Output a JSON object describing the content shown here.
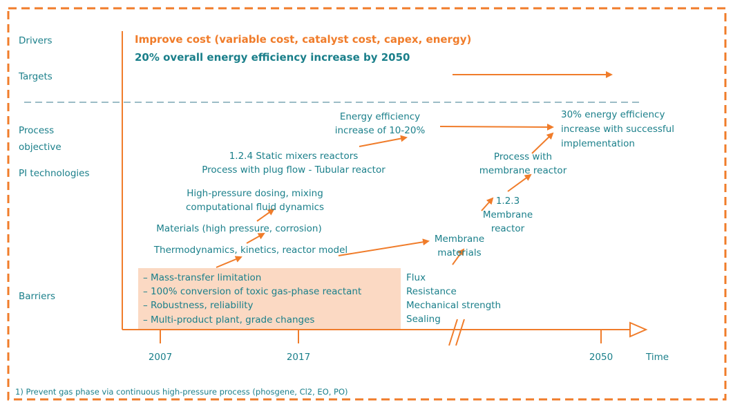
{
  "rows": {
    "drivers": "Drivers",
    "targets": "Targets",
    "process_objective": [
      "Process",
      "objective"
    ],
    "pi_technologies": "PI technologies",
    "barriers": "Barriers"
  },
  "drivers_text": "Improve cost (variable cost, catalyst cost, capex, energy)",
  "targets_text": "20% overall energy efficiency increase by 2050",
  "objectives": {
    "energy_10_20": [
      "Energy efficiency",
      "increase of 10-20%"
    ],
    "energy_30": [
      "30% energy efficiency",
      "increase with successful",
      "implementation"
    ]
  },
  "technologies": {
    "static_mixers": [
      "1.2.4 Static mixers reactors",
      "Process with plug flow - Tubular reactor"
    ],
    "hp_dosing": [
      "High-pressure dosing, mixing",
      "computational fluid dynamics"
    ],
    "materials": "Materials (high pressure, corrosion)",
    "thermodynamics": "Thermodynamics, kinetics, reactor model",
    "process_membrane": [
      "Process with",
      "membrane reactor"
    ],
    "membrane_reactor": [
      "1.2.3",
      "Membrane",
      "reactor"
    ],
    "membrane_materials": [
      "Membrane",
      "materials"
    ]
  },
  "barriers": {
    "box": [
      "– Mass-transfer limitation",
      "– 100% conversion of toxic gas-phase reactant",
      "– Robustness, reliability",
      "– Multi-product plant, grade changes"
    ],
    "membrane": [
      "Flux",
      "Resistance",
      "Mechanical strength",
      "Sealing"
    ]
  },
  "axis": {
    "ticks": [
      "2007",
      "2017",
      "2050"
    ],
    "label": "Time"
  },
  "footnote": "1)  Prevent gas phase via continuous high-pressure process (phosgene, Cl2, EO, PO)"
}
